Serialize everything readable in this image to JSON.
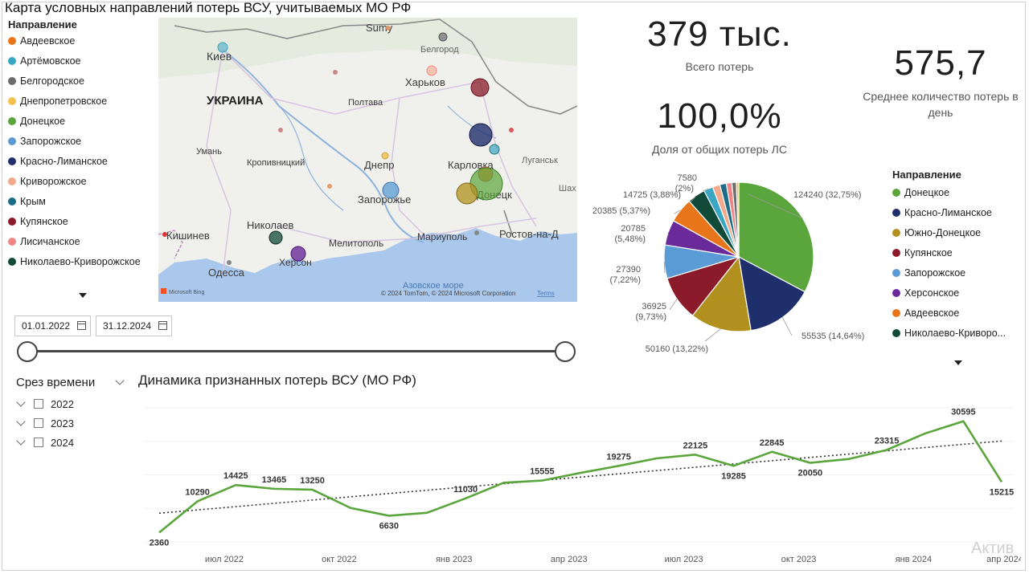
{
  "title": "Карта условных направлений потерь ВСУ, учитываемых МО РФ",
  "legend_left": {
    "title": "Направление",
    "items": [
      {
        "label": "Авдеевское",
        "color": "#e8751a"
      },
      {
        "label": "Артёмовское",
        "color": "#3aa6c4"
      },
      {
        "label": "Белгородское",
        "color": "#6b6b6b"
      },
      {
        "label": "Днепропетровское",
        "color": "#f2c14e"
      },
      {
        "label": "Донецкое",
        "color": "#5aa53c"
      },
      {
        "label": "Запорожское",
        "color": "#5b9bd5"
      },
      {
        "label": "Красно-Лиманское",
        "color": "#1f2f6b"
      },
      {
        "label": "Криворожское",
        "color": "#f3a98b"
      },
      {
        "label": "Крым",
        "color": "#1b6c84"
      },
      {
        "label": "Купянское",
        "color": "#8b1a2b"
      },
      {
        "label": "Лисичанское",
        "color": "#f08585"
      },
      {
        "label": "Николаево-Криворожское",
        "color": "#124a3a"
      }
    ]
  },
  "map": {
    "labels": {
      "sumy": "Sumy",
      "kiev": "Киев",
      "belgorod": "Белгород",
      "kharkov": "Харьков",
      "ukraine": "УКРАИНА",
      "poltava": "Полтава",
      "uman": "Умань",
      "kropivnitsky": "Кропивницкий",
      "dnepr": "Днепр",
      "karlovka": "Карловка",
      "lugansk": "Луганськ",
      "zaporozhye": "Запорожье",
      "donetsk": "Донецк",
      "nikolaev": "Николаев",
      "kishinev": "Кишинев",
      "kherson": "Херсон",
      "melitopol": "Мелитополь",
      "mariupol": "Мариуполь",
      "rostov": "Ростов-на-Д",
      "odessa": "Одесса",
      "azov": "Азовское море",
      "shakh": "Шах"
    },
    "attribution": "© 2024 TomTom, © 2024 Microsoft Corporation",
    "terms": "Terms",
    "bing": "Microsoft Bing"
  },
  "kpis": {
    "total_value": "379 тыс.",
    "total_label": "Всего потерь",
    "share_value": "100,0%",
    "share_label": "Доля от общих потерь ЛС",
    "avg_value": "575,7",
    "avg_label": "Среднее количество потерь в день"
  },
  "date_range": {
    "start": "01.01.2022",
    "end": "31.12.2024",
    "slider_start": 0,
    "slider_end": 1
  },
  "slicer": {
    "title": "Срез времени",
    "years": [
      "2022",
      "2023",
      "2024"
    ]
  },
  "legend_right": {
    "title": "Направление",
    "items": [
      {
        "label": "Донецкое",
        "color": "#5aa53c"
      },
      {
        "label": "Красно-Лиманское",
        "color": "#1f2f6b"
      },
      {
        "label": "Южно-Донецкое",
        "color": "#b1901f"
      },
      {
        "label": "Купянское",
        "color": "#8b1a2b"
      },
      {
        "label": "Запорожское",
        "color": "#5b9bd5"
      },
      {
        "label": "Херсонское",
        "color": "#6a2a9a"
      },
      {
        "label": "Авдеевское",
        "color": "#e8751a"
      },
      {
        "label": "Николаево-Криворо...",
        "color": "#124a3a"
      }
    ]
  },
  "chart_data": [
    {
      "type": "pie",
      "title": "",
      "slices": [
        {
          "name": "Донецкое",
          "value": 124240,
          "label": "124240 (32,75%)",
          "color": "#5aa53c"
        },
        {
          "name": "Красно-Лиманское",
          "value": 55535,
          "label": "55535 (14,64%)",
          "color": "#1f2f6b"
        },
        {
          "name": "Южно-Донецкое",
          "value": 50160,
          "label": "50160 (13,22%)",
          "color": "#b1901f"
        },
        {
          "name": "Купянское",
          "value": 36925,
          "label": "36925 (9,73%)",
          "color": "#8b1a2b"
        },
        {
          "name": "Запорожское",
          "value": 27390,
          "label": "27390 (7,22%)",
          "color": "#5b9bd5"
        },
        {
          "name": "Херсонское",
          "value": 20785,
          "label": "20785 (5,48%)",
          "color": "#6a2a9a"
        },
        {
          "name": "Авдеевское",
          "value": 20385,
          "label": "20385 (5,37%)",
          "color": "#e8751a"
        },
        {
          "name": "Николаево-Криворожское",
          "value": 14725,
          "label": "14725 (3,88%)",
          "color": "#124a3a"
        },
        {
          "name": "",
          "value": 7580,
          "label": "7580 (2%)",
          "color": "#3aa6c4"
        },
        {
          "name": "",
          "value": 6100,
          "label": "",
          "color": "#f3a98b"
        },
        {
          "name": "",
          "value": 5300,
          "label": "",
          "color": "#1b6c84"
        },
        {
          "name": "",
          "value": 4600,
          "label": "",
          "color": "#f08585"
        },
        {
          "name": "",
          "value": 3600,
          "label": "",
          "color": "#6b6b6b"
        },
        {
          "name": "",
          "value": 2000,
          "label": "",
          "color": "#f2c14e"
        }
      ]
    },
    {
      "type": "line",
      "title": "Динамика признанных потерь ВСУ (МО РФ)",
      "x_ticks": [
        "июл 2022",
        "окт 2022",
        "янв 2023",
        "апр 2023",
        "июл 2023",
        "окт 2023",
        "янв 2024",
        "апр 2024"
      ],
      "series": [
        {
          "name": "",
          "color": "#5aa53c",
          "values": [
            2360,
            10290,
            14425,
            13465,
            13250,
            8600,
            6630,
            7400,
            11030,
            15000,
            15555,
            17500,
            19275,
            21200,
            22125,
            19285,
            22845,
            20050,
            21000,
            23315,
            27500,
            30595,
            15215
          ],
          "labels": [
            "2360",
            "10290",
            "14425",
            "13465",
            "13250",
            "",
            "6630",
            "",
            "11030",
            "",
            "15555",
            "",
            "19275",
            "",
            "22125",
            "19285",
            "22845",
            "20050",
            "",
            "23315",
            "",
            "30595",
            "15215"
          ]
        }
      ],
      "trend": {
        "style": "dotted",
        "color": "#333333"
      },
      "ylim": [
        0,
        34000
      ]
    }
  ],
  "watermark": "Актив"
}
